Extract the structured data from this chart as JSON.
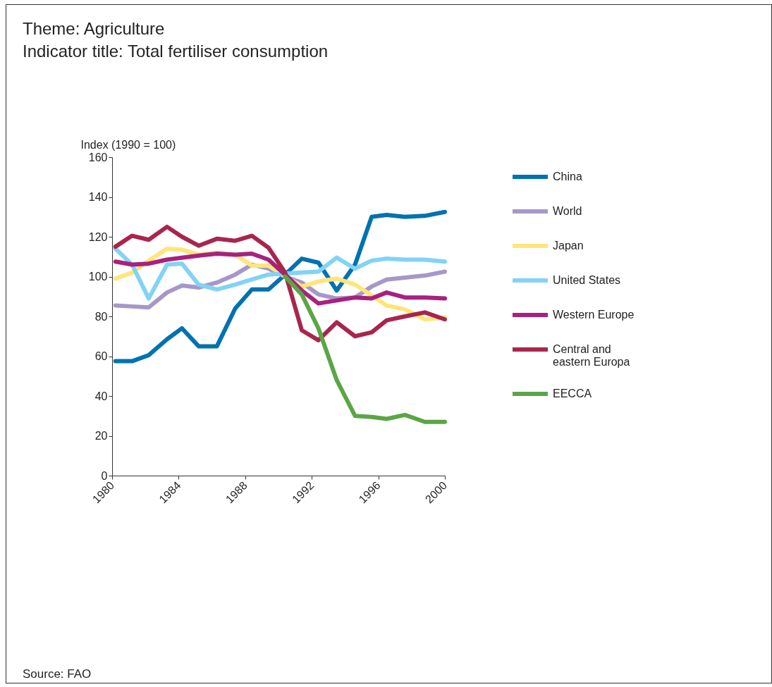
{
  "chart_data": {
    "type": "line",
    "title": "Theme: Agriculture",
    "subtitle": "Indicator title: Total fertiliser consumption",
    "ylabel": "Index (1990 = 100)",
    "x": [
      1980.2,
      1981.2,
      1982.2,
      1983.3,
      1984.2,
      1985.2,
      1986.3,
      1987.4,
      1988.4,
      1989.4,
      1990.4,
      1991.4,
      1992.4,
      1993.5,
      1994.6,
      1995.6,
      1996.5,
      1997.6,
      1998.8,
      2000
    ],
    "series": [
      {
        "name": "China",
        "color": "#0072b0",
        "values": [
          57.5,
          57.5,
          60.5,
          68.5,
          74,
          65,
          65,
          84,
          93.5,
          93.5,
          101,
          109,
          107,
          93,
          106,
          130,
          131,
          130,
          130.5,
          132.5
        ]
      },
      {
        "name": "World",
        "color": "#a797c8",
        "values": [
          85.5,
          85,
          84.5,
          92,
          95.5,
          94.5,
          97,
          101,
          106,
          104,
          100,
          97,
          91,
          89,
          89.5,
          95,
          98.5,
          99.5,
          100.5,
          102.5
        ]
      },
      {
        "name": "Japan",
        "color": "#ffe57a",
        "values": [
          99,
          102,
          108,
          114,
          113.5,
          111,
          112,
          111,
          105.5,
          105.5,
          100,
          95,
          97.5,
          99,
          96,
          90.5,
          85.5,
          83.5,
          78.5,
          79.5
        ]
      },
      {
        "name": "United States",
        "color": "#82d3f5",
        "values": [
          114,
          106,
          89,
          106,
          106.5,
          96,
          93.5,
          96,
          98.5,
          101,
          101.5,
          102,
          102.5,
          109.5,
          104,
          108,
          109,
          108.5,
          108.5,
          107.5
        ]
      },
      {
        "name": "Western Europe",
        "color": "#a8217f",
        "values": [
          107.5,
          106,
          106.5,
          108.5,
          109.5,
          110.5,
          111.5,
          111,
          111.5,
          108.5,
          101,
          93,
          86.5,
          88,
          89.5,
          89,
          92,
          89.5,
          89.5,
          89
        ]
      },
      {
        "name": "Central and eastern Europa",
        "color": "#a8264d",
        "values": [
          115,
          120.5,
          118.5,
          125,
          120,
          115.5,
          119,
          118,
          120.5,
          114.5,
          102,
          73,
          68,
          77,
          70,
          72,
          78,
          80,
          82,
          78.5
        ]
      },
      {
        "name": "EECCA",
        "color": "#5aa646",
        "values": [
          null,
          null,
          null,
          null,
          null,
          null,
          null,
          null,
          null,
          null,
          100,
          91,
          74,
          48,
          30,
          29.5,
          28.5,
          30.5,
          27,
          27
        ]
      }
    ],
    "xlim": [
      1980,
      2000
    ],
    "xticks": [
      1980,
      1984,
      1988,
      1992,
      1996,
      2000
    ],
    "ylim": [
      0,
      160
    ],
    "yticks": [
      0,
      20,
      40,
      60,
      80,
      100,
      120,
      140,
      160
    ],
    "grid": false,
    "legend": "right",
    "marker": "none",
    "line_style": "solid",
    "annotations": [
      "Source: FAO"
    ]
  }
}
